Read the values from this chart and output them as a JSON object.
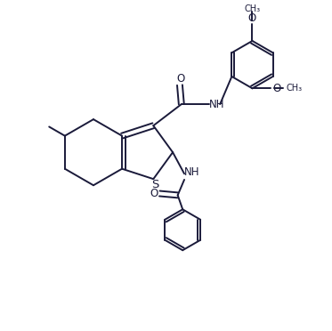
{
  "background_color": "#ffffff",
  "line_color": "#1a1a3a",
  "line_width": 1.4,
  "font_size": 8.5,
  "figsize": [
    3.73,
    3.72
  ],
  "dpi": 100,
  "xlim": [
    0,
    10
  ],
  "ylim": [
    0,
    10
  ]
}
